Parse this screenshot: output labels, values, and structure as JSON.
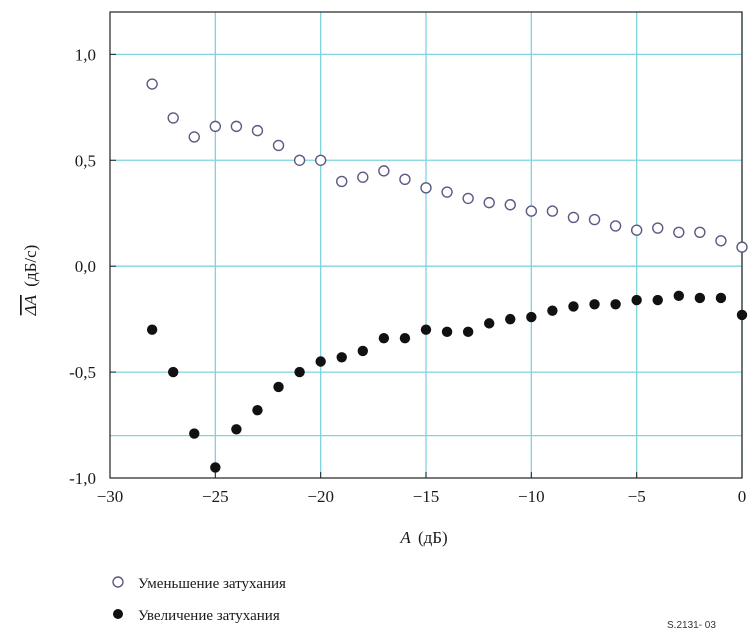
{
  "chart_data": {
    "type": "scatter",
    "xlabel_italic": "A",
    "xlabel_unit": "(дБ)",
    "ylabel_symbol": "ΔA",
    "ylabel_unit": "(дБ/с)",
    "xlim": [
      -30,
      0
    ],
    "ylim": [
      -1.0,
      1.2
    ],
    "x_ticks": [
      -30,
      -25,
      -20,
      -15,
      -10,
      -5,
      0
    ],
    "x_tick_labels": [
      "−30",
      "−25",
      "−20",
      "−15",
      "−10",
      "−5",
      "0"
    ],
    "y_ticks": [
      1.0,
      0.5,
      0.0,
      -0.5,
      -1.0
    ],
    "y_tick_labels": [
      "1,0",
      "0,5",
      "0,0",
      "-0,5",
      "-1,0"
    ],
    "grid": true,
    "grid_color": "#7fd4de",
    "series": [
      {
        "name": "Уменьшение затухания",
        "marker": "open-circle",
        "color": "#5b5a84",
        "points": [
          [
            -28,
            0.86
          ],
          [
            -27,
            0.7
          ],
          [
            -26,
            0.61
          ],
          [
            -25,
            0.66
          ],
          [
            -24,
            0.66
          ],
          [
            -23,
            0.64
          ],
          [
            -22,
            0.57
          ],
          [
            -21,
            0.5
          ],
          [
            -20,
            0.5
          ],
          [
            -19,
            0.4
          ],
          [
            -18,
            0.42
          ],
          [
            -17,
            0.45
          ],
          [
            -16,
            0.41
          ],
          [
            -15,
            0.37
          ],
          [
            -14,
            0.35
          ],
          [
            -13,
            0.32
          ],
          [
            -12,
            0.3
          ],
          [
            -11,
            0.29
          ],
          [
            -10,
            0.26
          ],
          [
            -9,
            0.26
          ],
          [
            -8,
            0.23
          ],
          [
            -7,
            0.22
          ],
          [
            -6,
            0.19
          ],
          [
            -5,
            0.17
          ],
          [
            -4,
            0.18
          ],
          [
            -3,
            0.16
          ],
          [
            -2,
            0.16
          ],
          [
            -1,
            0.12
          ],
          [
            0,
            0.09
          ]
        ]
      },
      {
        "name": "Увеличение затухания",
        "marker": "filled-circle",
        "color": "#111111",
        "points": [
          [
            -28,
            -0.3
          ],
          [
            -27,
            -0.5
          ],
          [
            -26,
            -0.79
          ],
          [
            -25,
            -0.95
          ],
          [
            -24,
            -0.77
          ],
          [
            -23,
            -0.68
          ],
          [
            -22,
            -0.57
          ],
          [
            -21,
            -0.5
          ],
          [
            -20,
            -0.45
          ],
          [
            -19,
            -0.43
          ],
          [
            -18,
            -0.4
          ],
          [
            -17,
            -0.34
          ],
          [
            -16,
            -0.34
          ],
          [
            -15,
            -0.3
          ],
          [
            -14,
            -0.31
          ],
          [
            -13,
            -0.31
          ],
          [
            -12,
            -0.27
          ],
          [
            -11,
            -0.25
          ],
          [
            -10,
            -0.24
          ],
          [
            -9,
            -0.21
          ],
          [
            -8,
            -0.19
          ],
          [
            -7,
            -0.18
          ],
          [
            -6,
            -0.18
          ],
          [
            -5,
            -0.16
          ],
          [
            -4,
            -0.16
          ],
          [
            -3,
            -0.14
          ],
          [
            -2,
            -0.15
          ],
          [
            -1,
            -0.15
          ],
          [
            0,
            -0.23
          ]
        ]
      }
    ]
  },
  "legend": {
    "item1": "Уменьшение затухания",
    "item2": "Увеличение затухания"
  },
  "footnote": "S.2131- 03"
}
